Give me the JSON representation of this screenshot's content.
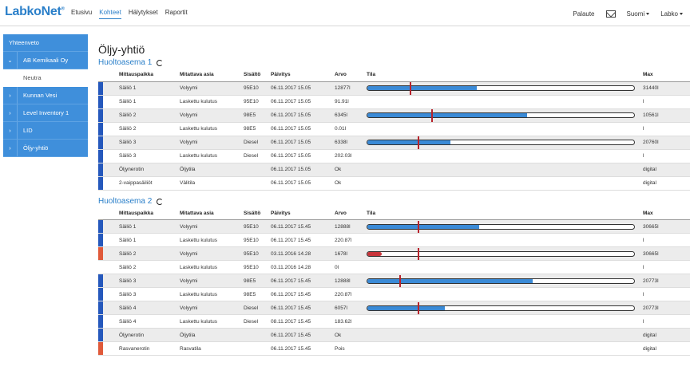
{
  "header": {
    "logo": "LabkoNet",
    "logo_mark": "®",
    "nav": [
      "Etusivu",
      "Kohteet",
      "Hälytykset",
      "Raportit"
    ],
    "nav_active": 1,
    "feedback": "Palaute",
    "language": "Suomi",
    "user": "Labko"
  },
  "sidebar": {
    "items": [
      {
        "label": "Yhteenveto",
        "type": "top"
      },
      {
        "label": "AB Kemikaali Oy",
        "type": "expanded"
      },
      {
        "label": "Neutra",
        "type": "sub"
      },
      {
        "label": "Kunnan Vesi",
        "type": "collapsed"
      },
      {
        "label": "Level Inventory 1",
        "type": "collapsed"
      },
      {
        "label": "LID",
        "type": "collapsed"
      },
      {
        "label": "Öljy-yhtiö",
        "type": "collapsed"
      }
    ]
  },
  "page": {
    "title": "Öljy-yhtiö"
  },
  "columns": [
    "Mittauspaikka",
    "Mitattava asia",
    "Sisältö",
    "Päivitys",
    "Arvo",
    "Tila",
    "Max"
  ],
  "stations": [
    {
      "name": "Huoltoasema 1",
      "rows": [
        {
          "place": "Säiliö 1",
          "measure": "Volyymi",
          "content": "95E10",
          "updated": "06.11.2017 15.05",
          "value": "12877l",
          "gauge": {
            "fill": 0.41,
            "mark": 0.16
          },
          "max": "31440l",
          "strip": "blue"
        },
        {
          "place": "Säiliö 1",
          "measure": "Laskettu kulutus",
          "content": "95E10",
          "updated": "06.11.2017 15.05",
          "value": "91.91l",
          "gauge": null,
          "max": "l",
          "strip": "blue"
        },
        {
          "place": "Säiliö 2",
          "measure": "Volyymi",
          "content": "98E5",
          "updated": "06.11.2017 15.05",
          "value": "6345l",
          "gauge": {
            "fill": 0.6,
            "mark": 0.24
          },
          "max": "10561l",
          "strip": "blue"
        },
        {
          "place": "Säiliö 2",
          "measure": "Laskettu kulutus",
          "content": "98E5",
          "updated": "06.11.2017 15.05",
          "value": "0.01l",
          "gauge": null,
          "max": "l",
          "strip": "blue"
        },
        {
          "place": "Säiliö 3",
          "measure": "Volyymi",
          "content": "Diesel",
          "updated": "06.11.2017 15.05",
          "value": "6338l",
          "gauge": {
            "fill": 0.31,
            "mark": 0.19
          },
          "max": "20760l",
          "strip": "blue"
        },
        {
          "place": "Säiliö 3",
          "measure": "Laskettu kulutus",
          "content": "Diesel",
          "updated": "06.11.2017 15.05",
          "value": "202.03l",
          "gauge": null,
          "max": "l",
          "strip": "blue"
        },
        {
          "place": "Öljynerotin",
          "measure": "Öljytila",
          "content": "",
          "updated": "06.11.2017 15.05",
          "value": "Ok",
          "gauge": null,
          "max": "digital",
          "strip": "blue"
        },
        {
          "place": "2-vaippasäiliöt",
          "measure": "Välitila",
          "content": "",
          "updated": "06.11.2017 15.05",
          "value": "Ok",
          "gauge": null,
          "max": "digital",
          "strip": "blue"
        }
      ]
    },
    {
      "name": "Huoltoasema 2",
      "rows": [
        {
          "place": "Säiliö 1",
          "measure": "Volyymi",
          "content": "95E10",
          "updated": "06.11.2017 15.45",
          "value": "12888l",
          "gauge": {
            "fill": 0.42,
            "mark": 0.19
          },
          "max": "30665l",
          "strip": "blue"
        },
        {
          "place": "Säiliö 1",
          "measure": "Laskettu kulutus",
          "content": "95E10",
          "updated": "06.11.2017 15.45",
          "value": "220.87l",
          "gauge": null,
          "max": "l",
          "strip": "blue"
        },
        {
          "place": "Säiliö 2",
          "measure": "Volyymi",
          "content": "95E10",
          "updated": "03.11.2016 14.28",
          "value": "1678l",
          "gauge": {
            "fill": 0.055,
            "mark": 0.19,
            "red": true
          },
          "max": "30665l",
          "strip": "red"
        },
        {
          "place": "Säiliö 2",
          "measure": "Laskettu kulutus",
          "content": "95E10",
          "updated": "03.11.2016 14.28",
          "value": "0l",
          "gauge": null,
          "max": "l",
          "strip": "none"
        },
        {
          "place": "Säiliö 3",
          "measure": "Volyymi",
          "content": "98E5",
          "updated": "06.11.2017 15.45",
          "value": "12888l",
          "gauge": {
            "fill": 0.62,
            "mark": 0.12
          },
          "max": "20773l",
          "strip": "blue"
        },
        {
          "place": "Säiliö 3",
          "measure": "Laskettu kulutus",
          "content": "98E5",
          "updated": "06.11.2017 15.45",
          "value": "220.87l",
          "gauge": null,
          "max": "l",
          "strip": "blue"
        },
        {
          "place": "Säiliö 4",
          "measure": "Volyymi",
          "content": "Diesel",
          "updated": "06.11.2017 15.45",
          "value": "6057l",
          "gauge": {
            "fill": 0.29,
            "mark": 0.19
          },
          "max": "20773l",
          "strip": "blue"
        },
        {
          "place": "Säiliö 4",
          "measure": "Laskettu kulutus",
          "content": "Diesel",
          "updated": "08.11.2017 15.45",
          "value": "183.62l",
          "gauge": null,
          "max": "l",
          "strip": "blue"
        },
        {
          "place": "Öljynerotin",
          "measure": "Öljytila",
          "content": "",
          "updated": "06.11.2017 15.45",
          "value": "Ok",
          "gauge": null,
          "max": "digital",
          "strip": "blue"
        },
        {
          "place": "Rasvanerotin",
          "measure": "Rasvatila",
          "content": "",
          "updated": "06.11.2017 15.45",
          "value": "Pois",
          "gauge": null,
          "max": "digital",
          "strip": "red"
        }
      ]
    }
  ],
  "colors": {
    "accent": "#2a7fc9",
    "sidebar": "#3f8fdb",
    "strip_blue": "#2558bc",
    "strip_red": "#e05a3a",
    "gauge_fill": "#3a8ad6",
    "gauge_mark": "#b8232c"
  }
}
